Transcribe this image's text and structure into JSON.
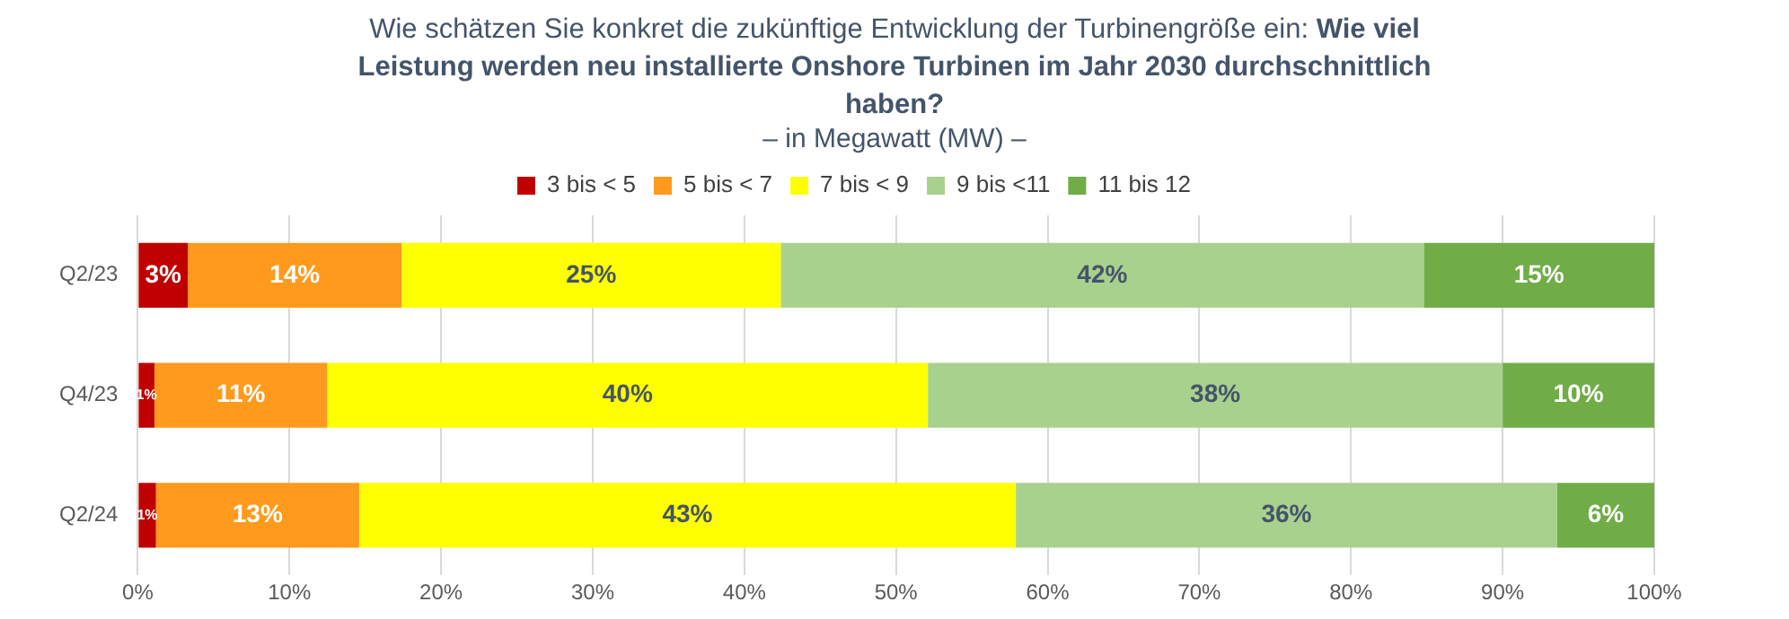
{
  "chart_data": {
    "type": "bar",
    "orientation": "horizontal",
    "stacked": true,
    "title": "Wie schätzen Sie konkret die zukünftige Entwicklung der Turbinengröße ein: Wie viel Leistung werden neu installierte Onshore Turbinen im Jahr 2030 durchschnittlich haben?",
    "subtitle": "– in Megawatt (MW) –",
    "categories": [
      "Q2/23",
      "Q4/23",
      "Q2/24"
    ],
    "series": [
      {
        "name": "3 bis < 5",
        "color": "#c00000",
        "values": [
          3.3,
          1.1,
          1.2
        ],
        "value_labels": [
          "3%",
          "1%",
          "1%"
        ]
      },
      {
        "name": "5 bis < 7",
        "color": "#ff9a1c",
        "values": [
          14.1,
          11.4,
          13.4
        ],
        "value_labels": [
          "14%",
          "11%",
          "13%"
        ]
      },
      {
        "name": "7 bis < 9",
        "color": "#ffff00",
        "values": [
          25.0,
          39.6,
          43.3
        ],
        "value_labels": [
          "25%",
          "40%",
          "43%"
        ]
      },
      {
        "name": "9 bis <11",
        "color": "#a9d18e",
        "values": [
          42.4,
          37.9,
          35.7
        ],
        "value_labels": [
          "42%",
          "38%",
          "36%"
        ]
      },
      {
        "name": "11 bis 12",
        "color": "#70ad47",
        "values": [
          15.2,
          10.0,
          6.4
        ],
        "value_labels": [
          "15%",
          "10%",
          "6%"
        ]
      }
    ],
    "xlim": [
      0,
      100
    ],
    "xticks": [
      {
        "value": 0,
        "label": "0%"
      },
      {
        "value": 10,
        "label": "10%"
      },
      {
        "value": 20,
        "label": "20%"
      },
      {
        "value": 30,
        "label": "30%"
      },
      {
        "value": 40,
        "label": "40%"
      },
      {
        "value": 50,
        "label": "50%"
      },
      {
        "value": 60,
        "label": "60%"
      },
      {
        "value": 70,
        "label": "70%"
      },
      {
        "value": 80,
        "label": "80%"
      },
      {
        "value": 90,
        "label": "90%"
      },
      {
        "value": 100,
        "label": "100%"
      }
    ],
    "grid": "x",
    "legend": "top"
  }
}
